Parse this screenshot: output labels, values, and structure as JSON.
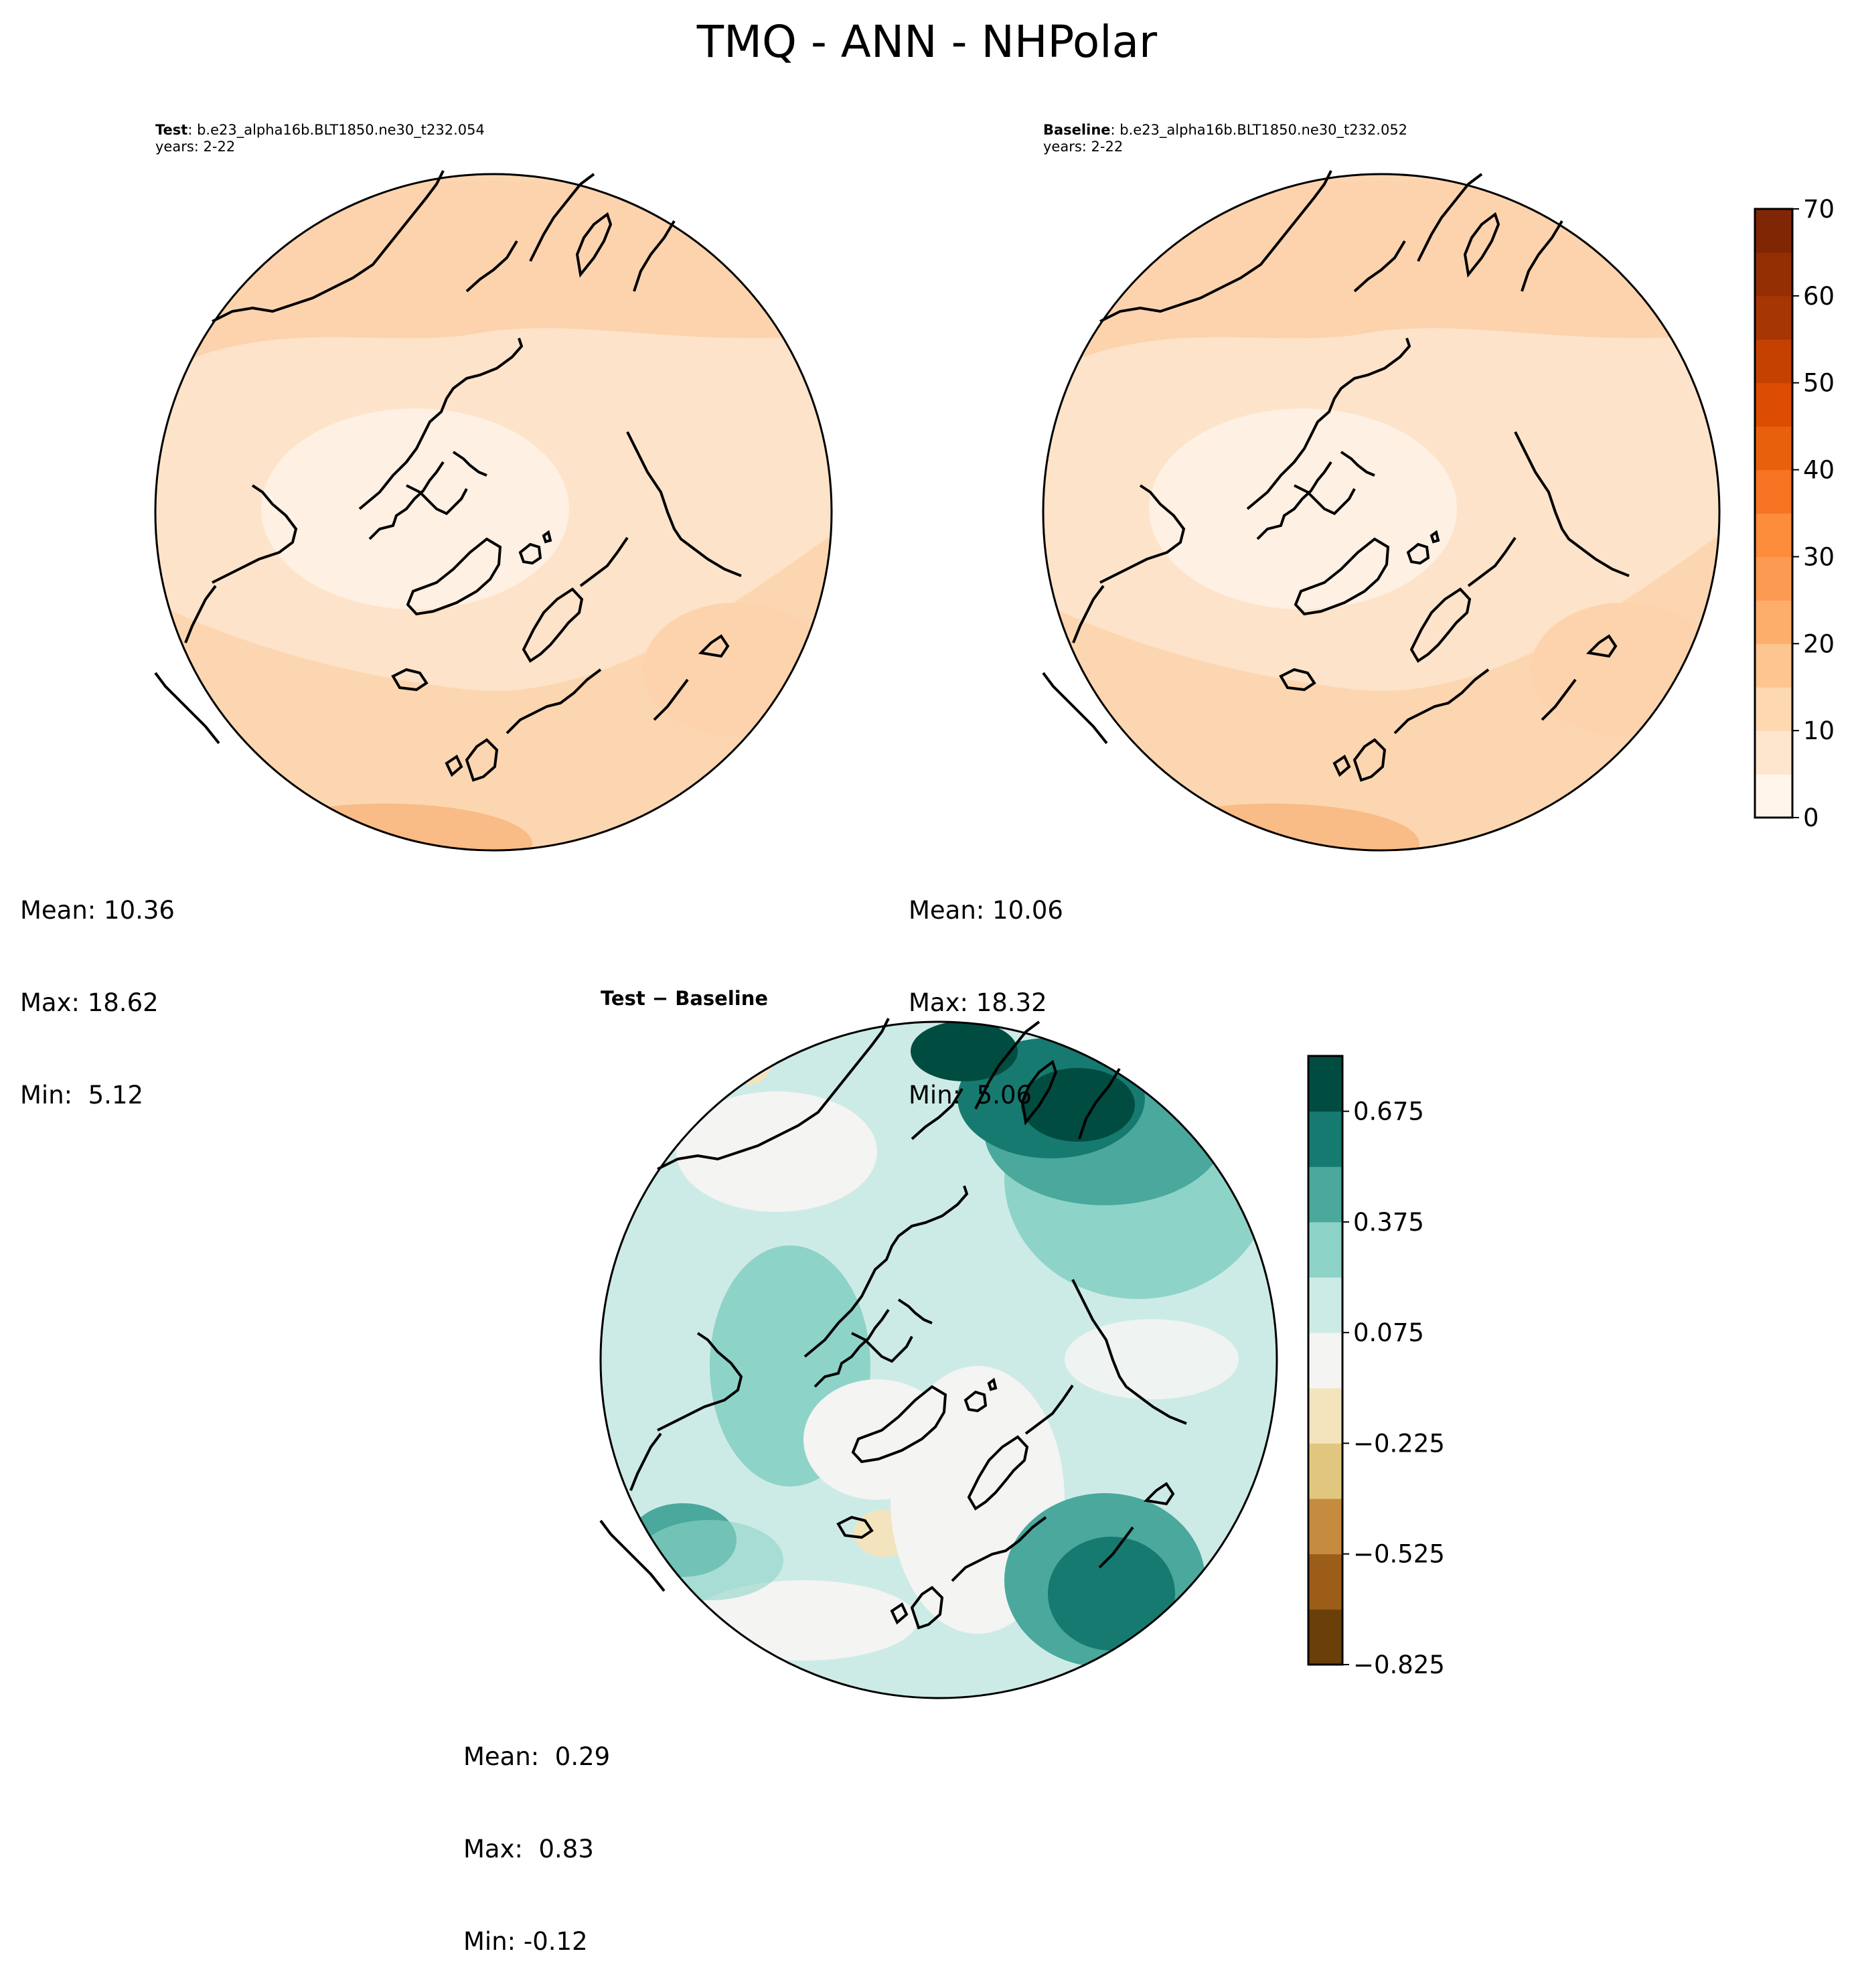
{
  "title": "TMQ - ANN - NHPolar",
  "panels": [
    {
      "label_bold": "Test",
      "label_rest": ": b.e23_alpha16b.BLT1850.ne30_t232.054",
      "years": "years: 2-22",
      "stats": [
        "Mean: 10.36",
        "Max: 18.62",
        "Min:  5.12"
      ]
    },
    {
      "label_bold": "Baseline",
      "label_rest": ": b.e23_alpha16b.BLT1850.ne30_t232.052",
      "years": "years: 2-22",
      "stats": [
        "Mean: 10.06",
        "Max: 18.32",
        "Min:  5.06"
      ]
    }
  ],
  "diff_panel": {
    "title": "Test − Baseline",
    "stats": [
      "Mean:  0.29",
      "Max:  0.83",
      "Min: -0.12"
    ]
  },
  "chart_data": [
    {
      "type": "heatmap",
      "projection": "north-polar-stereographic",
      "field": "TMQ",
      "season": "ANN",
      "region": "NHPolar",
      "colorbar": {
        "min": 0,
        "max": 70,
        "step": 5,
        "tick_labels": [
          "0",
          "10",
          "20",
          "30",
          "40",
          "50",
          "60",
          "70"
        ],
        "colors": [
          "#fff5eb",
          "#fee6ce",
          "#fdd8b0",
          "#fdc58f",
          "#fdae6b",
          "#fd9a52",
          "#fd8c3b",
          "#f67422",
          "#e9600c",
          "#dc4c03",
          "#c54102",
          "#a63603",
          "#942f03",
          "#7f2704"
        ]
      },
      "field_colors": {
        "low": "#fef0e2",
        "mid": "#fde3c9",
        "high": "#fcd3ad",
        "max": "#f9bc86"
      }
    },
    {
      "type": "heatmap",
      "projection": "north-polar-stereographic",
      "field": "TMQ difference",
      "colorbar": {
        "min": -0.825,
        "max": 0.825,
        "step": 0.15,
        "tick_labels": [
          "−0.825",
          "−0.525",
          "−0.225",
          "0.075",
          "0.375",
          "0.675"
        ],
        "colors": [
          "#6b3f0a",
          "#9b5d17",
          "#c58b3e",
          "#e0c67f",
          "#f3e4bd",
          "#f4f4f2",
          "#cdebe6",
          "#8ed3c8",
          "#4aa89c",
          "#167a70",
          "#014c40"
        ]
      }
    }
  ]
}
